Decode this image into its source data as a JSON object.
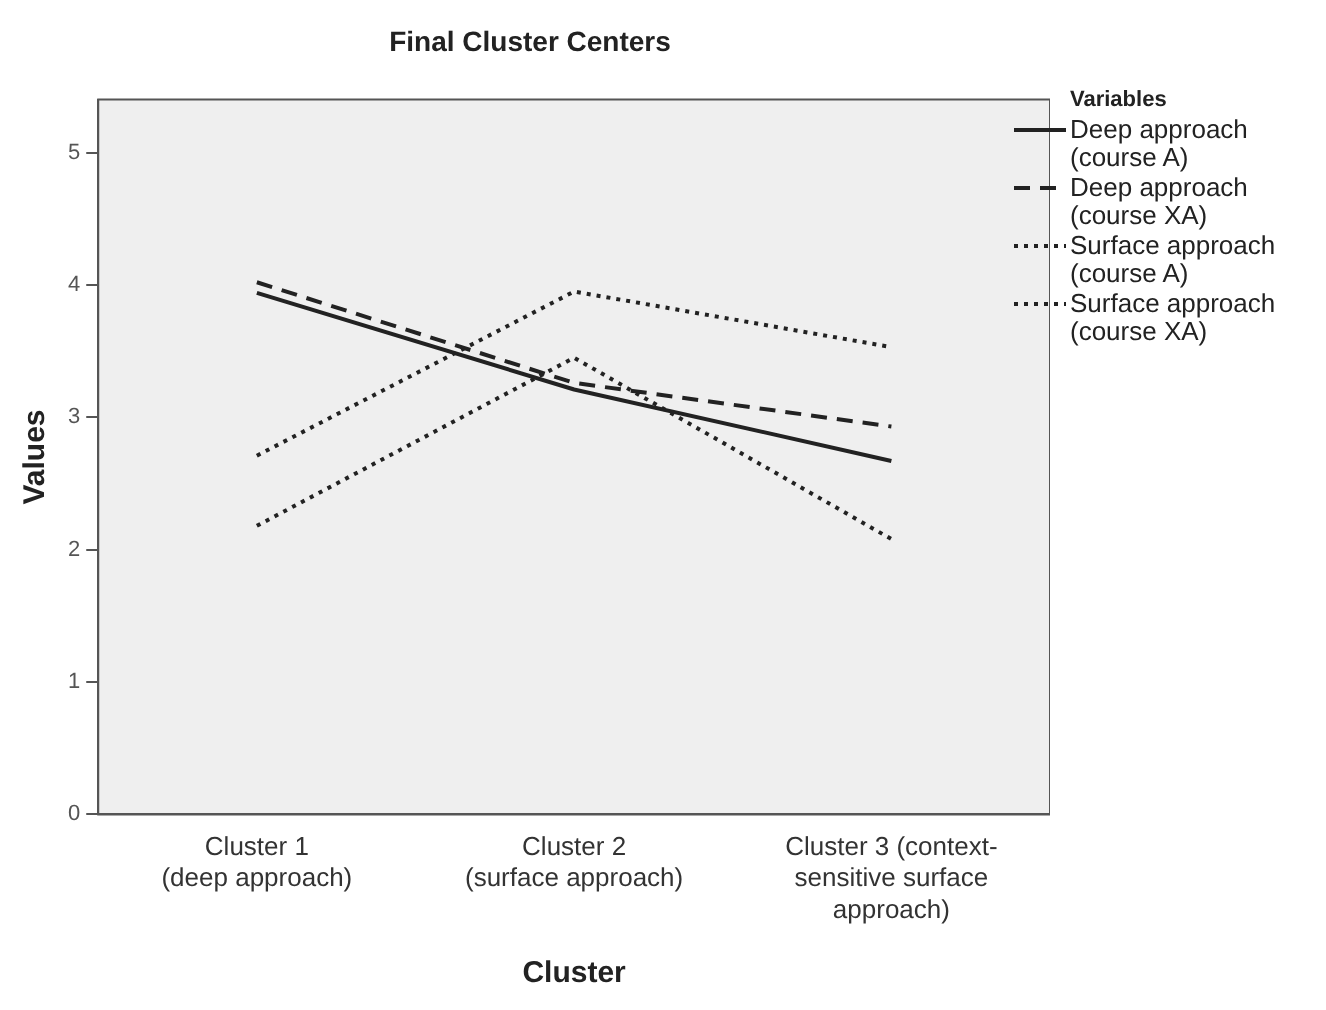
{
  "chart_data": {
    "type": "line",
    "title": "Final Cluster Centers",
    "xlabel": "Cluster",
    "ylabel": "Values",
    "legend_title": "Variables",
    "legend": "right",
    "categories": [
      "Cluster 1\n(deep approach)",
      "Cluster 2\n(surface approach)",
      "Cluster 3 (context-\nsensitive surface\napproach)"
    ],
    "ylim": [
      0,
      5.4
    ],
    "yticks": [
      0,
      1,
      2,
      3,
      4,
      5
    ],
    "grid": false,
    "marker": "none",
    "series": [
      {
        "name": "Deep approach (course A)",
        "color": "#222222",
        "line_style": "solid",
        "values": [
          3.94,
          3.21,
          2.67
        ]
      },
      {
        "name": "Deep approach (course XA)",
        "color": "#222222",
        "line_style": "dashed",
        "values": [
          4.02,
          3.26,
          2.93
        ]
      },
      {
        "name": "Surface approach (course A)",
        "color": "#222222",
        "line_style": "dotted",
        "values": [
          2.71,
          3.95,
          3.53
        ]
      },
      {
        "name": "Surface approach (course XA)",
        "color": "#222222",
        "line_style": "dotted",
        "values": [
          2.18,
          3.45,
          2.08
        ]
      }
    ]
  }
}
